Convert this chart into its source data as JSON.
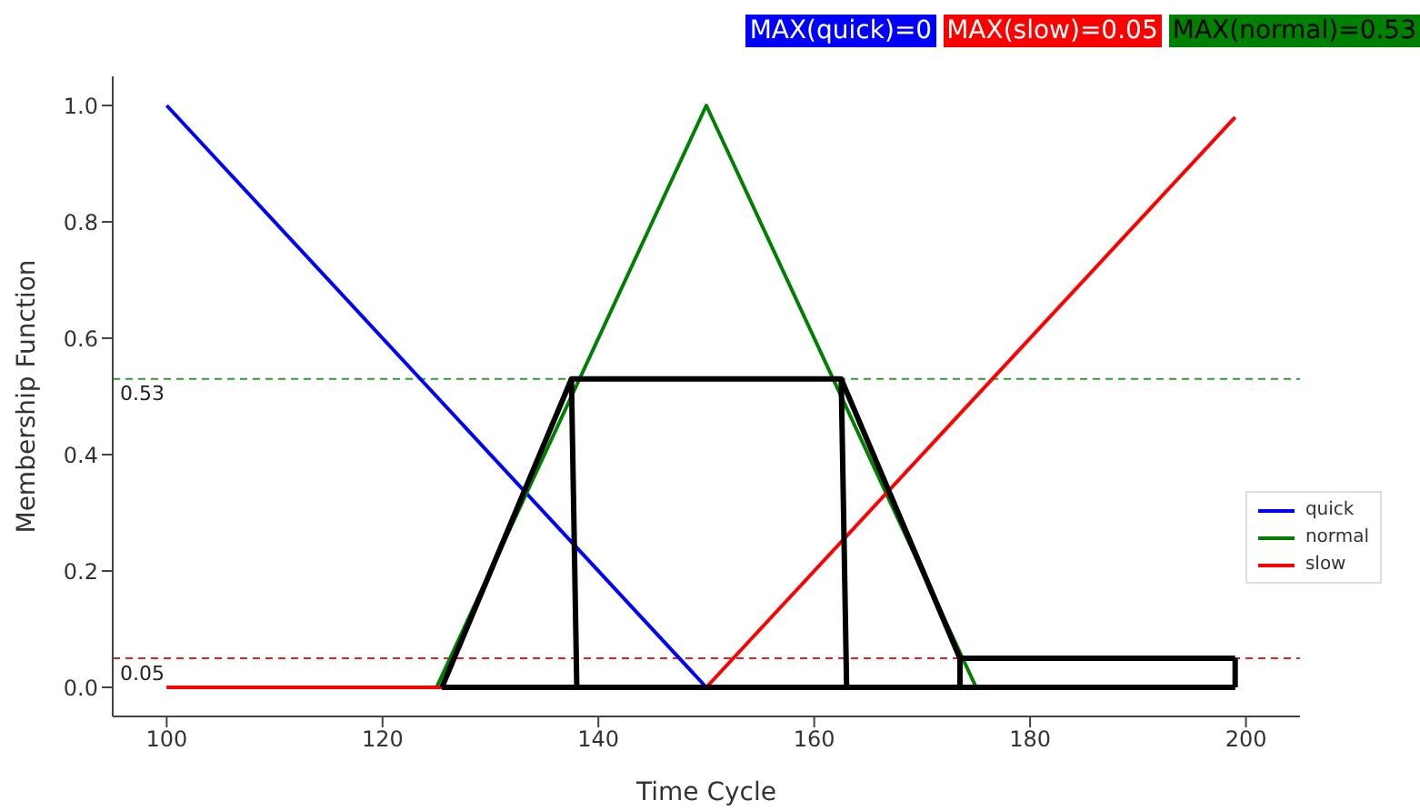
{
  "chart_data": {
    "type": "line",
    "xlabel": "Time Cycle",
    "ylabel": "Membership Function",
    "annotations": [
      "MAX(quick)=0",
      "MAX(slow)=0.05",
      "MAX(normal)=0.53"
    ],
    "series": [
      {
        "name": "quick",
        "color": "#0000ff",
        "x": [
          100,
          150,
          199
        ],
        "values": [
          1,
          0,
          0
        ]
      },
      {
        "name": "normal",
        "color": "#008000",
        "x": [
          100,
          125,
          150,
          175
        ],
        "values": [
          0,
          0,
          1,
          0
        ]
      },
      {
        "name": "slow",
        "color": "#ff0000",
        "x": [
          100,
          150,
          199
        ],
        "values": [
          0,
          0,
          0.98
        ]
      },
      {
        "color": "#000000",
        "x": [
          125.5,
          137.5,
          162.5,
          173.5,
          199
        ],
        "values": [
          0,
          0.53,
          0.53,
          0.05,
          0.05
        ]
      },
      {
        "color": "#000000",
        "x": [
          125.5,
          199
        ],
        "values": [
          0,
          0
        ]
      },
      {
        "color": "#000000",
        "x": [
          199,
          199
        ],
        "values": [
          0.05,
          0
        ]
      },
      {
        "color": "#000000",
        "x": [
          137.5,
          138
        ],
        "values": [
          0.53,
          0
        ]
      },
      {
        "color": "#000000",
        "x": [
          162.5,
          163
        ],
        "values": [
          0.53,
          0
        ]
      },
      {
        "color": "#000000",
        "x": [
          173.5,
          173.5
        ],
        "values": [
          0.05,
          0
        ]
      }
    ],
    "ref_lines": [
      {
        "axis": "y",
        "value": 0.53,
        "label": "0.53",
        "color": "#2ca02c",
        "line_style": "dashed"
      },
      {
        "axis": "y",
        "value": 0.05,
        "label": "0.05",
        "color": "#d62728",
        "line_style": "dashed"
      }
    ],
    "xlim": [
      95,
      205
    ],
    "xticks": [
      100,
      120,
      140,
      160,
      180,
      200
    ],
    "ylim": [
      -0.05,
      1.05
    ],
    "yticks": [
      {
        "value": 0,
        "label": "0.0"
      },
      {
        "value": 0.2,
        "label": "0.2"
      },
      {
        "value": 0.4,
        "label": "0.4"
      },
      {
        "value": 0.6,
        "label": "0.6"
      },
      {
        "value": 0.8,
        "label": "0.8"
      },
      {
        "value": 1,
        "label": "1.0"
      }
    ],
    "legend": "right",
    "marker": "none",
    "line_style": "solid",
    "grid": false
  }
}
